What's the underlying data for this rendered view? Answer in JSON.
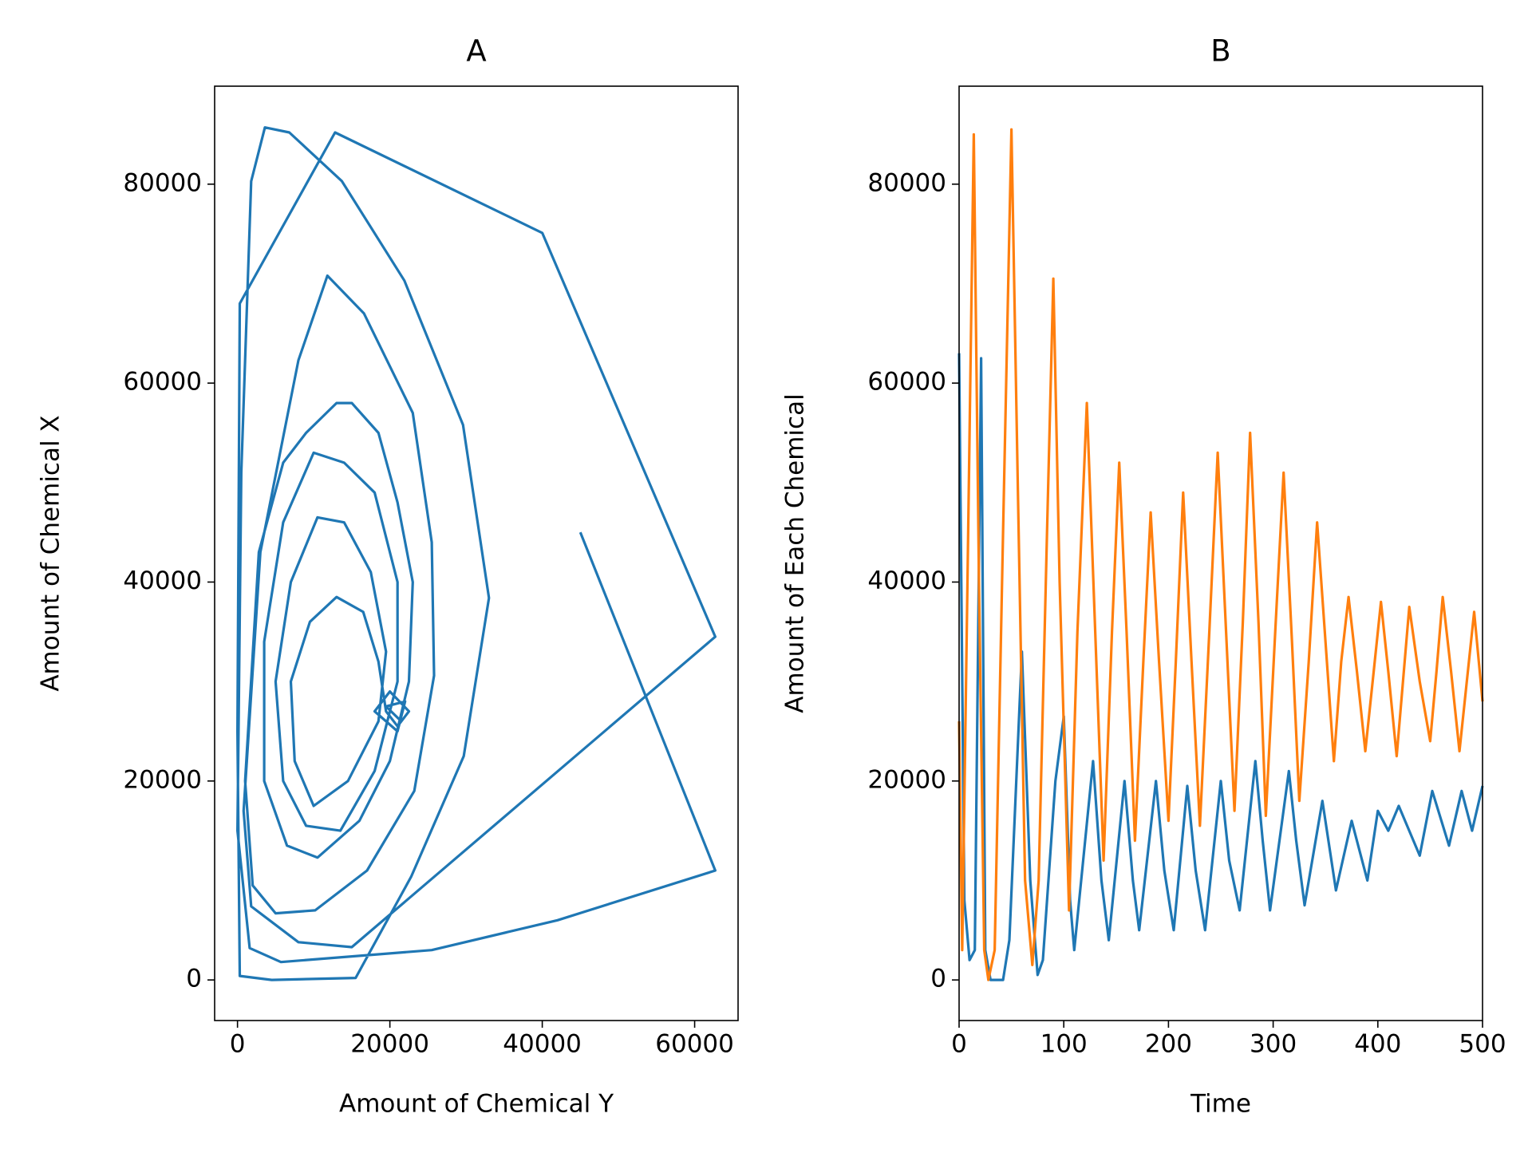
{
  "chart_data": [
    {
      "type": "line",
      "title": "A",
      "x_label": "Amount of Chemical Y",
      "y_label": "Amount of Chemical X",
      "color": "#1f77b4",
      "x": [
        45000,
        62700,
        42000,
        25500,
        5700,
        1600,
        0,
        500,
        1800,
        3600,
        6800,
        13700,
        21900,
        29600,
        33000,
        29700,
        22800,
        15500,
        4500,
        300,
        0,
        300,
        12800,
        40000,
        62700,
        15000,
        8000,
        1800,
        800,
        3000,
        8000,
        11800,
        16600,
        23000,
        25500,
        25800,
        23200,
        17000,
        10200,
        5000,
        2000,
        1000,
        2800,
        6000,
        9000,
        13000,
        15000,
        18500,
        21000,
        23000,
        22500,
        20000,
        16000,
        10500,
        6500,
        3500,
        3500,
        6000,
        10000,
        14000,
        18000,
        21000,
        21000,
        18000,
        13500,
        9000,
        6000,
        5000,
        7000,
        10500,
        14000,
        17500,
        19500,
        18500,
        14500,
        10000,
        7500,
        7000,
        9500,
        13000,
        16500,
        18500,
        19500,
        21000,
        22500,
        20000,
        18000,
        21000,
        22000,
        19500,
        21500
      ],
      "values": [
        45000,
        11000,
        6000,
        3000,
        1800,
        3200,
        15000,
        51000,
        80300,
        85700,
        85200,
        80300,
        70300,
        55800,
        38400,
        22500,
        10400,
        200,
        0,
        400,
        25000,
        68000,
        85200,
        75100,
        34500,
        3300,
        3800,
        7400,
        17000,
        43000,
        62300,
        70800,
        67000,
        57000,
        44000,
        30600,
        19000,
        11000,
        7000,
        6700,
        9500,
        20000,
        43000,
        52000,
        55000,
        58000,
        58000,
        55000,
        48000,
        40000,
        30000,
        22000,
        16000,
        12300,
        13500,
        20000,
        34000,
        46000,
        53000,
        52000,
        49000,
        40000,
        30000,
        21000,
        15000,
        15500,
        20000,
        30000,
        40000,
        46500,
        46000,
        41000,
        33000,
        26000,
        20000,
        17500,
        22000,
        30000,
        36000,
        38500,
        37000,
        32000,
        27000,
        25500,
        27000,
        29000,
        27000,
        25000,
        28000,
        27500,
        26000
      ],
      "xlim": [
        -3000,
        65700
      ],
      "ylim": [
        -4080,
        89850
      ],
      "xticks": [
        0,
        20000,
        40000,
        60000
      ],
      "yticks": [
        0,
        20000,
        40000,
        60000,
        80000
      ]
    },
    {
      "type": "line",
      "title": "B",
      "x_label": "Time",
      "y_label": "Amount of Each Chemical",
      "series": [
        {
          "color": "#1f77b4",
          "x": [
            0,
            5,
            10,
            15,
            21,
            25,
            30,
            42,
            48,
            60,
            68,
            75,
            80,
            92,
            100,
            106,
            110,
            128,
            136,
            143,
            158,
            166,
            172,
            188,
            196,
            205,
            218,
            226,
            235,
            250,
            258,
            268,
            283,
            290,
            297,
            315,
            322,
            330,
            347,
            360,
            375,
            390,
            400,
            410,
            420,
            440,
            452,
            468,
            480,
            490,
            500
          ],
          "values": [
            63000,
            8000,
            2000,
            3000,
            62500,
            3000,
            0,
            0,
            4000,
            33000,
            10000,
            500,
            2000,
            20000,
            26500,
            8000,
            3000,
            22000,
            10000,
            4000,
            20000,
            10000,
            5000,
            20000,
            11000,
            5000,
            19500,
            11000,
            5000,
            20000,
            12000,
            7000,
            22000,
            14000,
            7000,
            21000,
            14000,
            7500,
            18000,
            9000,
            16000,
            10000,
            17000,
            15000,
            17500,
            12500,
            19000,
            13500,
            19000,
            15000,
            19500
          ]
        },
        {
          "color": "#ff7f0e",
          "x": [
            0,
            3,
            8,
            14,
            19,
            24,
            28,
            34,
            42,
            50,
            56,
            63,
            70,
            76,
            84,
            90,
            96,
            105,
            113,
            122,
            130,
            138,
            146,
            153,
            160,
            168,
            176,
            183,
            191,
            200,
            207,
            214,
            222,
            230,
            239,
            247,
            255,
            263,
            271,
            278,
            286,
            293,
            302,
            310,
            318,
            325,
            334,
            342,
            350,
            358,
            365,
            372,
            380,
            388,
            396,
            403,
            410,
            418,
            424,
            430,
            440,
            450,
            456,
            462,
            470,
            478,
            485,
            492,
            500
          ],
          "values": [
            26000,
            3000,
            40000,
            85000,
            40000,
            3000,
            0,
            3000,
            45000,
            85500,
            50000,
            10000,
            1500,
            10000,
            45000,
            70500,
            40000,
            7000,
            35000,
            58000,
            35000,
            12000,
            35000,
            52000,
            35000,
            14000,
            32000,
            47000,
            32000,
            16000,
            32000,
            49000,
            32000,
            15500,
            35000,
            53000,
            35000,
            17000,
            36000,
            55000,
            36000,
            16500,
            35000,
            51000,
            34000,
            18000,
            32000,
            46000,
            34000,
            22000,
            32000,
            38500,
            31000,
            23000,
            31000,
            38000,
            31000,
            22500,
            30000,
            37500,
            30000,
            24000,
            31000,
            38500,
            31000,
            23000,
            30000,
            37000,
            28000
          ]
        }
      ],
      "xlim": [
        0,
        500
      ],
      "ylim": [
        -4080,
        89850
      ],
      "xticks": [
        0,
        100,
        200,
        300,
        400,
        500
      ],
      "yticks": [
        0,
        20000,
        40000,
        60000,
        80000
      ]
    }
  ]
}
